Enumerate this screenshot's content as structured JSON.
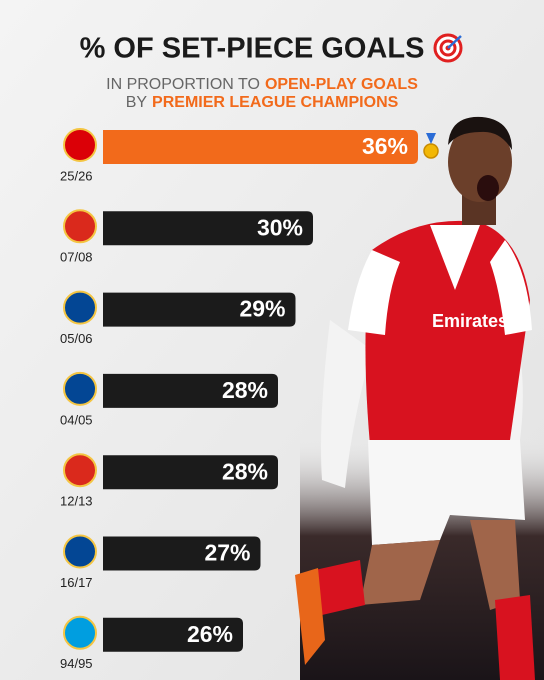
{
  "chart_data": {
    "type": "bar",
    "orientation": "horizontal",
    "title": "% OF SET-PIECE GOALS",
    "subtitle_lines": [
      {
        "plain": "IN PROPORTION TO",
        "highlight": "OPEN-PLAY GOALS"
      },
      {
        "plain": "BY",
        "highlight": "PREMIER LEAGUE CHAMPIONS"
      }
    ],
    "highlight_color": "#f26a1b",
    "categories": [
      "25/26",
      "07/08",
      "05/06",
      "04/05",
      "12/13",
      "16/17",
      "94/95"
    ],
    "values": [
      36,
      30,
      29,
      28,
      28,
      27,
      26
    ],
    "value_labels": [
      "36%",
      "30%",
      "29%",
      "28%",
      "28%",
      "27%",
      "26%"
    ],
    "colors": [
      "#f26a1b",
      "#1b1b1b",
      "#1b1b1b",
      "#1b1b1b",
      "#1b1b1b",
      "#1b1b1b",
      "#1b1b1b"
    ],
    "badge_colors": [
      "#db0007",
      "#da291c",
      "#034694",
      "#034694",
      "#da291c",
      "#034694",
      "#009ee0"
    ],
    "xlim": [
      18,
      36
    ]
  }
}
